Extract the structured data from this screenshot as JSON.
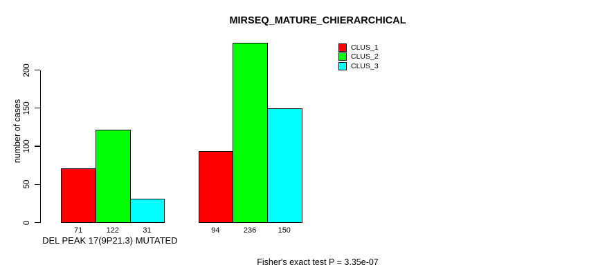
{
  "chart_data": {
    "type": "bar",
    "title": "MIRSEQ_MATURE_CHIERARCHICAL",
    "ylabel": "number of cases",
    "xlabel": "",
    "ylim": [
      0,
      200
    ],
    "yticks": [
      0,
      50,
      100,
      150,
      200
    ],
    "categories": [
      "DEL PEAK 17(9P21.3) MUTATED",
      ""
    ],
    "series": [
      {
        "name": "CLUS_1",
        "color": "#ff0000",
        "values": [
          71,
          94
        ]
      },
      {
        "name": "CLUS_2",
        "color": "#00ff00",
        "values": [
          122,
          236
        ]
      },
      {
        "name": "CLUS_3",
        "color": "#00ffff",
        "values": [
          31,
          150
        ]
      }
    ],
    "bar_value_labels": [
      [
        71,
        122,
        31
      ],
      [
        94,
        236,
        150
      ]
    ],
    "legend": {
      "position": "top-right",
      "entries": [
        "CLUS_1",
        "CLUS_2",
        "CLUS_3"
      ]
    },
    "grid": false,
    "annotation": "Fisher's exact test P = 3.35e-07",
    "colors": {
      "axis": "#000000",
      "text": "#000000",
      "background": "#ffffff"
    }
  }
}
